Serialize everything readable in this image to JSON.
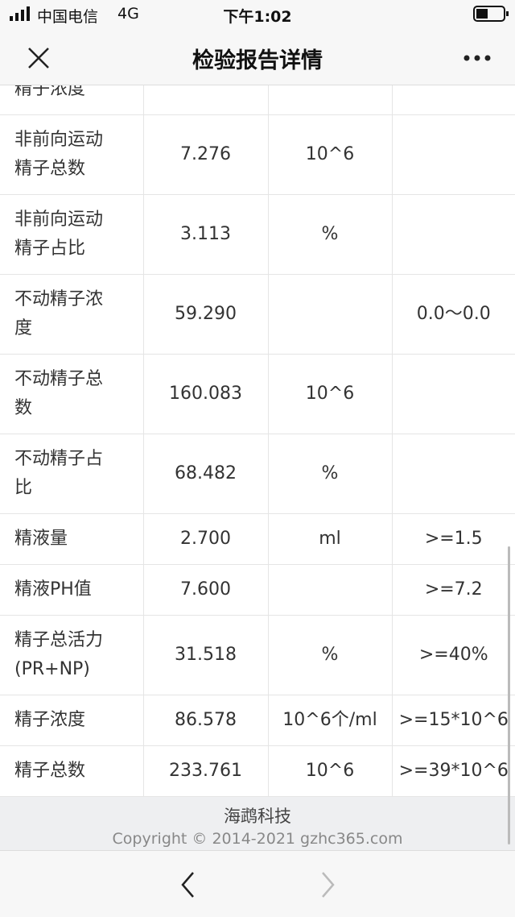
{
  "status_bar": {
    "carrier": "中国电信",
    "network": "4G",
    "time": "下午1:02"
  },
  "header": {
    "title": "检验报告详情"
  },
  "table": {
    "rows": [
      {
        "name": "精子浓度"
      },
      {
        "name": "非前向运动精子总数",
        "value": "7.276",
        "unit": "10^6"
      },
      {
        "name": "非前向运动精子占比",
        "value": "3.113",
        "unit": "%"
      },
      {
        "name": "不动精子浓度",
        "value": "59.290",
        "range": "0.0～0.0"
      },
      {
        "name": "不动精子总数",
        "value": "160.083",
        "unit": "10^6"
      },
      {
        "name": "不动精子占比",
        "value": "68.482",
        "unit": "%"
      },
      {
        "name": "精液量",
        "value": "2.700",
        "unit": "ml",
        "range": ">=1.5"
      },
      {
        "name": "精液PH值",
        "value": "7.600",
        "range": ">=7.2"
      },
      {
        "name": "精子总活力(PR+NP)",
        "value": "31.518",
        "unit": "%",
        "range": ">=40%"
      },
      {
        "name": "精子浓度",
        "value": "86.578",
        "unit": "10^6个/ml",
        "range": ">=15*10^6"
      },
      {
        "name": "精子总数",
        "value": "233.761",
        "unit": "10^6",
        "range": ">=39*10^6"
      }
    ]
  },
  "footer": {
    "brand": "海鹉科技",
    "copyright": "Copyright © 2014-2021 gzhc365.com"
  }
}
